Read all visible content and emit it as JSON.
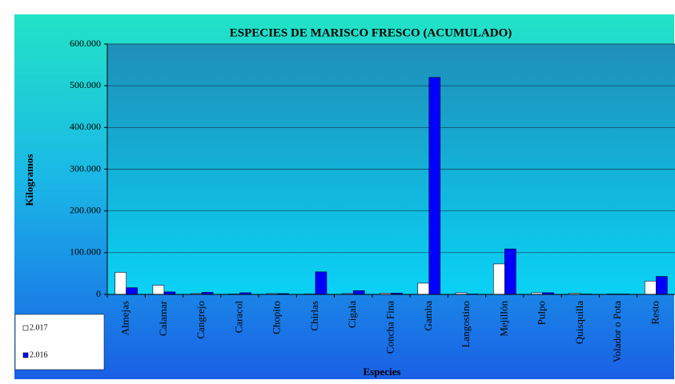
{
  "chart_data": {
    "type": "bar",
    "title": "ESPECIES DE MARISCO FRESCO (ACUMULADO)",
    "x_label": "Especies",
    "y_label": "Kilogramos",
    "categories": [
      "Almejas",
      "Calamar",
      "Cangrejo",
      "Caracol",
      "Chopito",
      "Chirlas",
      "Cigala",
      "Concha Fina",
      "Gamba",
      "Langostino",
      "Mejillón",
      "Pulpo",
      "Quisquilla",
      "Volador o Pota",
      "Resto"
    ],
    "series": [
      {
        "name": "2.017",
        "color": "#ffffff",
        "values": [
          53000,
          22000,
          2000,
          1000,
          2000,
          1000,
          2000,
          3000,
          27000,
          4000,
          73000,
          4000,
          3000,
          1000,
          32000
        ]
      },
      {
        "name": "2.016",
        "color": "#0000ff",
        "values": [
          16000,
          6000,
          5000,
          4000,
          2000,
          54000,
          9000,
          3000,
          520000,
          1000,
          109000,
          4000,
          1000,
          1000,
          43000
        ]
      }
    ],
    "ylim": [
      0,
      600000
    ],
    "yticks": [
      0,
      {
        "value": 100000,
        "label": "100.000"
      },
      {
        "value": 200000,
        "label": "200.000"
      },
      {
        "value": 300000,
        "label": "300.000"
      },
      {
        "value": 400000,
        "label": "400.000"
      },
      {
        "value": 500000,
        "label": "500.000"
      },
      {
        "value": 600000,
        "label": "600.000"
      }
    ],
    "grid": true,
    "legend": "bottom-left"
  }
}
